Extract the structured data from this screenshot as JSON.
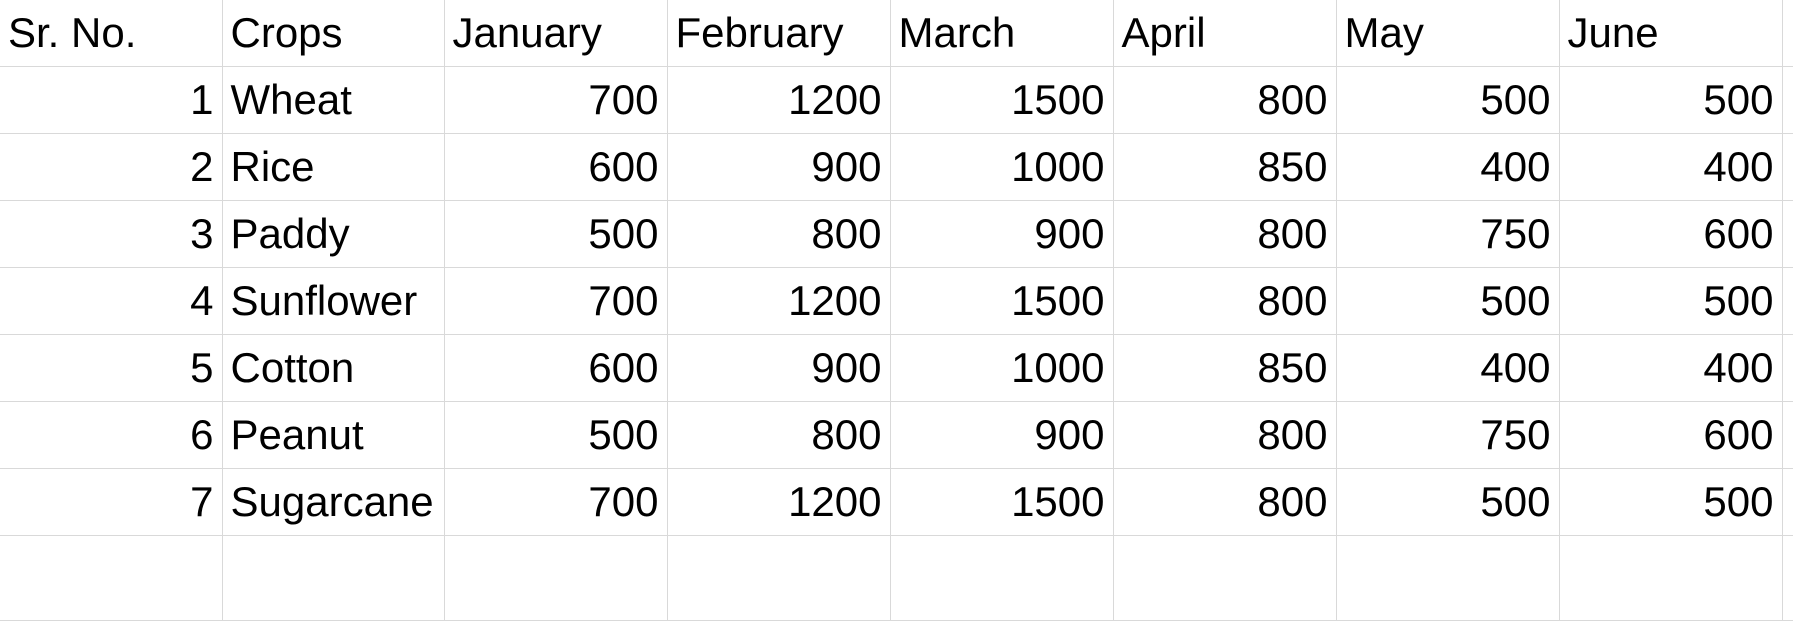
{
  "table": {
    "headers": [
      "Sr. No.",
      "Crops",
      "January",
      "February",
      "March",
      "April",
      "May",
      "June"
    ],
    "rows": [
      {
        "sr": "1",
        "crop": "Wheat",
        "values": [
          "700",
          "1200",
          "1500",
          "800",
          "500",
          "500"
        ]
      },
      {
        "sr": "2",
        "crop": "Rice",
        "values": [
          "600",
          "900",
          "1000",
          "850",
          "400",
          "400"
        ]
      },
      {
        "sr": "3",
        "crop": "Paddy",
        "values": [
          "500",
          "800",
          "900",
          "800",
          "750",
          "600"
        ]
      },
      {
        "sr": "4",
        "crop": "Sunflower",
        "values": [
          "700",
          "1200",
          "1500",
          "800",
          "500",
          "500"
        ]
      },
      {
        "sr": "5",
        "crop": "Cotton",
        "values": [
          "600",
          "900",
          "1000",
          "850",
          "400",
          "400"
        ]
      },
      {
        "sr": "6",
        "crop": "Peanut",
        "values": [
          "500",
          "800",
          "900",
          "800",
          "750",
          "600"
        ]
      },
      {
        "sr": "7",
        "crop": "Sugarcane",
        "values": [
          "700",
          "1200",
          "1500",
          "800",
          "500",
          "500"
        ]
      }
    ]
  },
  "colors": {
    "gridline": "#d9d9d9",
    "background": "#ffffff",
    "text": "#000000"
  }
}
